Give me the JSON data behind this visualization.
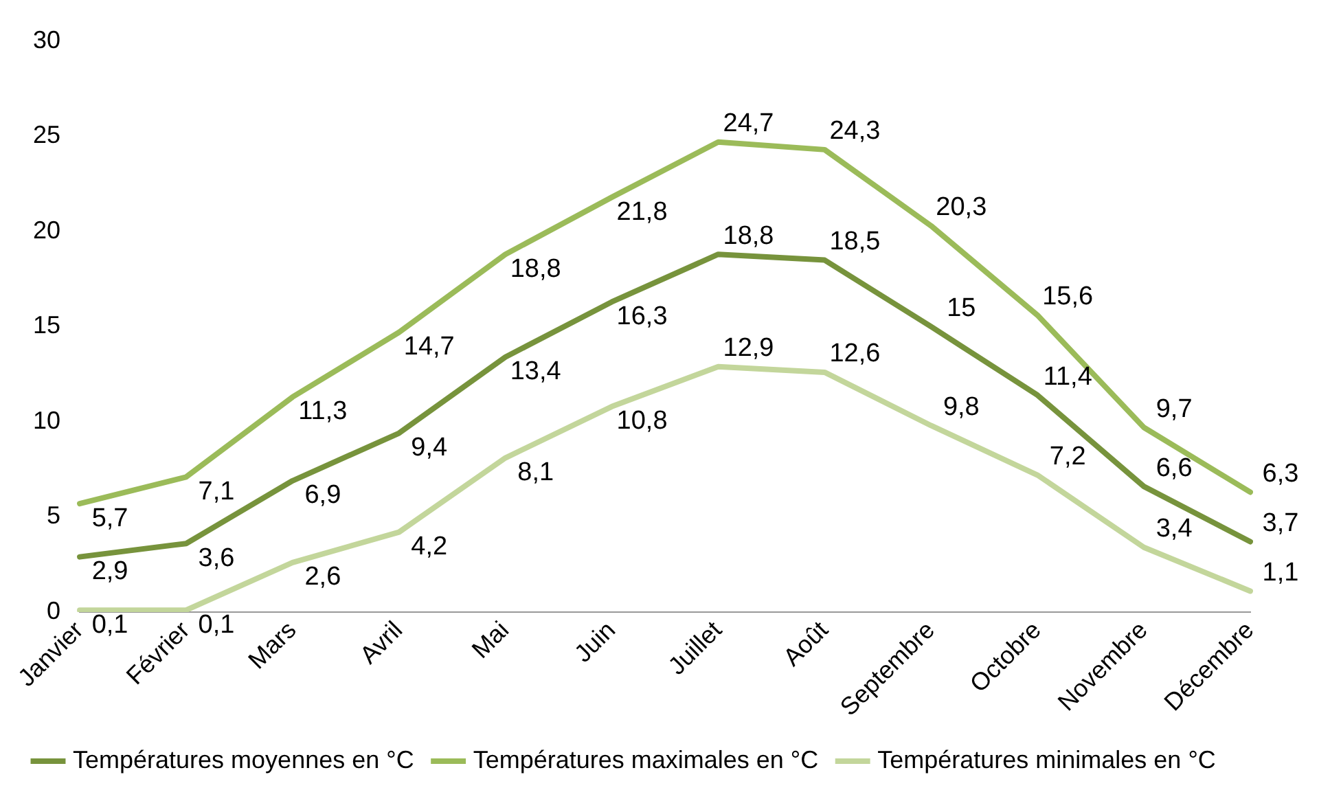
{
  "chart_data": {
    "type": "line",
    "categories": [
      "Janvier",
      "Février",
      "Mars",
      "Avril",
      "Mai",
      "Juin",
      "Juillet",
      "Août",
      "Septembre",
      "Octobre",
      "Novembre",
      "Décembre"
    ],
    "series": [
      {
        "name": "Températures moyennes en °C",
        "color": "#77933c",
        "values": [
          2.9,
          3.6,
          6.9,
          9.4,
          13.4,
          16.3,
          18.8,
          18.5,
          15,
          11.4,
          6.6,
          3.7
        ],
        "value_labels": [
          "2,9",
          "3,6",
          "6,9",
          "9,4",
          "13,4",
          "16,3",
          "18,8",
          "18,5",
          "15",
          "11,4",
          "6,6",
          "3,7"
        ]
      },
      {
        "name": "Températures maximales en °C",
        "color": "#9bbb59",
        "values": [
          5.7,
          7.1,
          11.3,
          14.7,
          18.8,
          21.8,
          24.7,
          24.3,
          20.3,
          15.6,
          9.7,
          6.3
        ],
        "value_labels": [
          "5,7",
          "7,1",
          "11,3",
          "14,7",
          "18,8",
          "21,8",
          "24,7",
          "24,3",
          "20,3",
          "15,6",
          "9,7",
          "6,3"
        ]
      },
      {
        "name": "Températures minimales en °C",
        "color": "#c3d69b",
        "values": [
          0.1,
          0.1,
          2.6,
          4.2,
          8.1,
          10.8,
          12.9,
          12.6,
          9.8,
          7.2,
          3.4,
          1.1
        ],
        "value_labels": [
          "0,1",
          "0,1",
          "2,6",
          "4,2",
          "8,1",
          "10,8",
          "12,9",
          "12,6",
          "9,8",
          "7,2",
          "3,4",
          "1,1"
        ]
      }
    ],
    "ylim": [
      0,
      30
    ],
    "yticks": [
      0,
      5,
      10,
      15,
      20,
      25,
      30
    ],
    "grid": false,
    "legend": "bottom",
    "marker": "none",
    "line_style": "solid"
  }
}
